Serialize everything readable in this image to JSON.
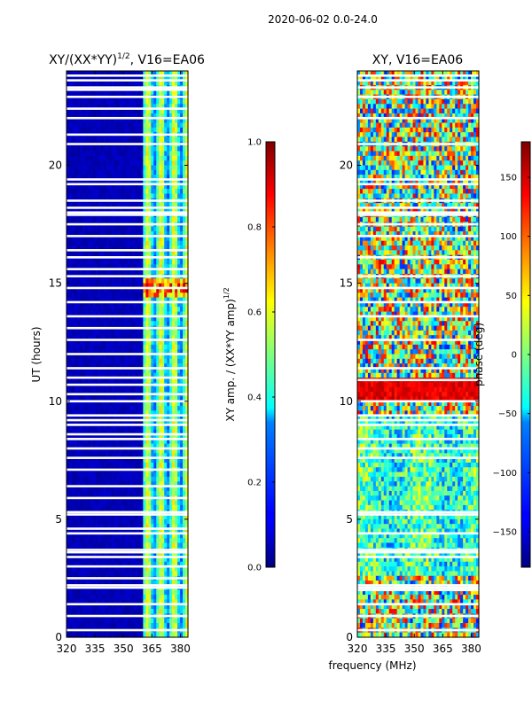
{
  "figure_title": "2020-06-02 0.0-24.0",
  "shared_xlabel": "frequency (MHz)",
  "chart_data": [
    {
      "type": "heatmap",
      "title_main": "XY/(XX*YY)",
      "title_exp": "1/2",
      "title_tail": ", V16=EA06",
      "xlabel": "",
      "ylabel": "UT (hours)",
      "xlim": [
        320,
        384
      ],
      "ylim": [
        0,
        24
      ],
      "xticks": [
        320,
        335,
        350,
        365,
        380
      ],
      "yticks": [
        0,
        5,
        10,
        15,
        20
      ],
      "colorbar": {
        "label_main": "XY amp. / (XX*YY amp)",
        "label_exp": "1/2",
        "range": [
          0.0,
          1.0
        ],
        "ticks": [
          0.0,
          0.2,
          0.4,
          0.6,
          0.8,
          1.0
        ],
        "tick_labels": [
          "0.0",
          "0.2",
          "0.4",
          "0.6",
          "0.8",
          "1.0"
        ],
        "colormap": "jet"
      },
      "description_bands": [
        {
          "freq_range": [
            320,
            361
          ],
          "value": 0.03
        },
        {
          "freq_range": [
            361,
            384
          ],
          "value": 0.35
        }
      ],
      "flagged_hours": [
        0.3,
        0.9,
        1.4,
        2.1,
        2.2,
        2.5,
        3.0,
        3.4,
        3.6,
        3.7,
        4.4,
        4.6,
        5.2,
        5.3,
        5.9,
        6.4,
        7.1,
        7.6,
        8.0,
        8.4,
        8.6,
        9.0,
        9.2,
        9.4,
        10.0,
        10.3,
        10.7,
        11.0,
        11.4,
        12.0,
        12.6,
        13.1,
        13.6,
        14.2,
        14.8,
        15.3,
        15.6,
        16.1,
        16.4,
        17.0,
        17.5,
        17.9,
        18.0,
        18.2,
        18.5,
        19.2,
        19.4,
        20.9,
        21.3,
        22.0,
        22.4,
        22.9,
        23.2,
        23.3,
        23.6,
        23.8
      ]
    },
    {
      "type": "heatmap",
      "title_main": "XY, V16=EA06",
      "xlabel": "",
      "ylabel": "",
      "xlim": [
        320,
        384
      ],
      "ylim": [
        0,
        24
      ],
      "xticks": [
        320,
        335,
        350,
        365,
        380
      ],
      "yticks": [
        0,
        5,
        10,
        15,
        20
      ],
      "colorbar": {
        "label_main": "phase (deg)",
        "range": [
          -180,
          180
        ],
        "ticks": [
          -150,
          -100,
          -50,
          0,
          50,
          100,
          150
        ],
        "tick_labels": [
          "−150",
          "−100",
          "−50",
          "0",
          "50",
          "100",
          "150"
        ],
        "colormap": "jet"
      },
      "description_bands": [
        {
          "ut_range": [
            10.0,
            10.9
          ],
          "value": 150
        }
      ],
      "flagged_hours": [
        0.3,
        0.9,
        1.4,
        2.0,
        2.1,
        2.2,
        3.4,
        3.6,
        3.7,
        4.4,
        5.2,
        5.3,
        7.6,
        8.0,
        8.4,
        9.0,
        9.2,
        9.4,
        10.0,
        10.9,
        11.4,
        12.6,
        13.6,
        14.2,
        14.8,
        15.3,
        16.1,
        17.0,
        17.5,
        17.9,
        18.0,
        18.2,
        18.5,
        19.2,
        19.4,
        20.9,
        22.0,
        22.9,
        23.3,
        23.6,
        23.8
      ]
    }
  ]
}
